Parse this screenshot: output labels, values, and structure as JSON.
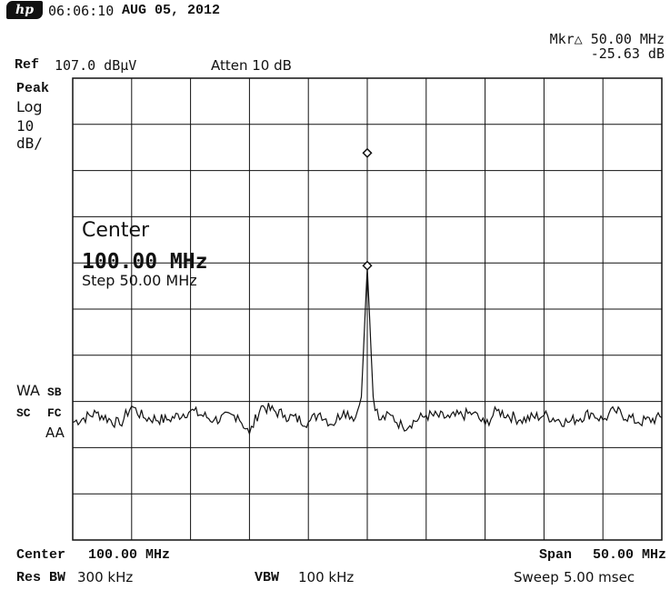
{
  "header": {
    "logo_text": "hp",
    "time": "06:06:10",
    "date": "AUG 05, 2012",
    "marker_label": "Mkr△ 50.00 MHz",
    "marker_value": "-25.63 dB",
    "ref_prefix": "Ref",
    "ref_value": "107.0 dBµV",
    "atten": "Atten 10 dB"
  },
  "side_labels": {
    "detector": "Peak",
    "scale_type": "Log",
    "scale_value": "10",
    "scale_unit": "dB/",
    "wa": "WA",
    "sb": "SB",
    "sc": "SC",
    "fc": "FC",
    "aa": "AA"
  },
  "overlay": {
    "title": "Center",
    "value": "100.00 MHz",
    "step": "Step 50.00 MHz"
  },
  "footer": {
    "center_label": "Center",
    "center_value": "100.00 MHz",
    "span_label": "Span",
    "span_value": "50.00 MHz",
    "rbw_label": "Res BW",
    "rbw_value": "300 kHz",
    "vbw_label": "VBW",
    "vbw_value": "100 kHz",
    "sweep_label": "Sweep",
    "sweep_value": "5.00 msec"
  },
  "chart_data": {
    "type": "line",
    "title": "",
    "xlabel": "",
    "ylabel": "",
    "x_range_mhz": [
      75,
      125
    ],
    "y_range_dbuv": [
      7,
      107
    ],
    "grid": {
      "x_divisions": 10,
      "y_divisions": 10,
      "visible": true
    },
    "trace_color": "#111111",
    "series": [
      {
        "x": [
          75,
          77,
          79,
          80,
          81,
          83,
          85,
          87,
          89,
          90,
          91,
          93,
          95,
          96,
          97,
          98,
          99,
          99.5,
          99.8,
          100,
          100.2,
          100.5,
          101,
          102,
          103,
          105,
          107,
          109,
          110,
          111,
          113,
          115,
          117,
          119,
          120,
          121,
          123,
          125
        ],
        "y": [
          32.5,
          34.5,
          32,
          36,
          33.5,
          33,
          35,
          33,
          34,
          30,
          36,
          34,
          32.5,
          34.5,
          32,
          35,
          33.5,
          38,
          55,
          66,
          55,
          38,
          33,
          34,
          31.5,
          34,
          33.5,
          34.5,
          32,
          35,
          33,
          34,
          32.5,
          34.5,
          33,
          35,
          32.5,
          33.5
        ]
      }
    ],
    "markers": [
      {
        "x": 100,
        "y": 66.4
      },
      {
        "x": 100,
        "y": 90.8
      }
    ]
  }
}
